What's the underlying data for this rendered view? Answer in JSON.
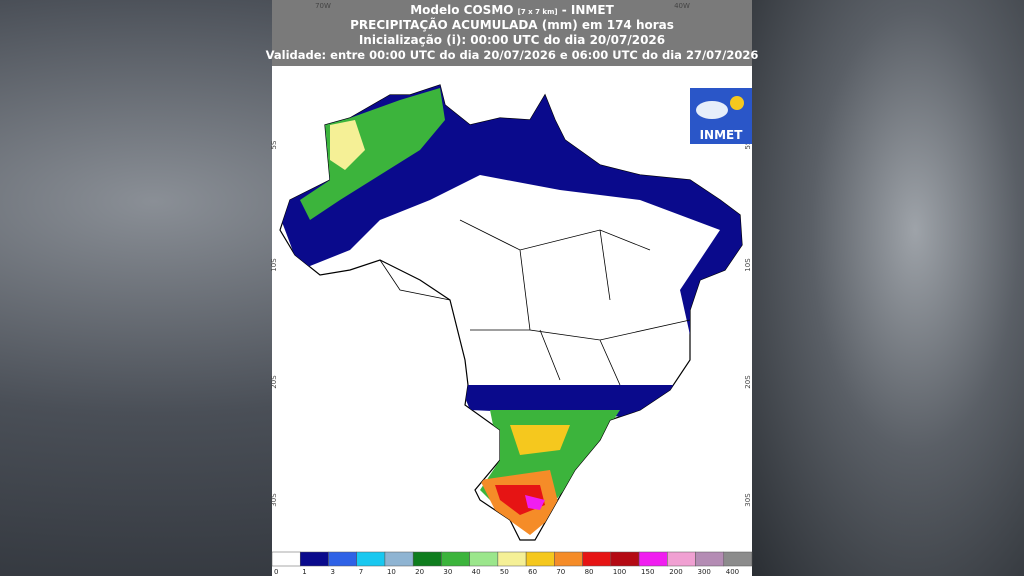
{
  "header": {
    "model": "Modelo COSMO",
    "resolution": "[7 x 7 km]",
    "source": "- INMET",
    "title": "PRECIPITAÇÃO ACUMULADA (mm) em 174 horas",
    "init": "Inicialização (i): 00:00 UTC do dia 20/07/2026",
    "validity": "Validade: entre 00:00 UTC do dia 20/07/2026 e 06:00 UTC do dia 27/07/2026"
  },
  "map": {
    "lon_labels": [
      "70W",
      "40W"
    ],
    "lat_labels": [
      "5S",
      "10S",
      "20S",
      "30S"
    ]
  },
  "logo": {
    "text": "INMET"
  },
  "legend": {
    "labels": [
      "0",
      "1",
      "3",
      "7",
      "10",
      "20",
      "30",
      "40",
      "50",
      "60",
      "70",
      "80",
      "100",
      "150",
      "200",
      "300",
      "400"
    ],
    "colors": [
      "#ffffff",
      "#0a0a8c",
      "#2f62e6",
      "#19c8f0",
      "#8fb4d2",
      "#0f7d1e",
      "#3cb43c",
      "#9be68c",
      "#f5f096",
      "#f5c81e",
      "#f58c28",
      "#e61414",
      "#b40a14",
      "#f01ef0",
      "#f0a0d2",
      "#b48cb4",
      "#8c8c8c"
    ]
  }
}
